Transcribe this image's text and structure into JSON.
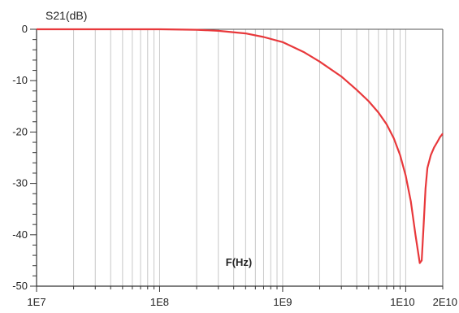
{
  "chart_data": {
    "type": "line",
    "title": "",
    "ylabel": "S21(dB)",
    "xlabel": "F(Hz)",
    "x_scale": "log",
    "xlim": [
      10000000.0,
      20000000000.0
    ],
    "ylim": [
      -50,
      0
    ],
    "grid": "x-minor-log",
    "x_tick_labels": [
      {
        "value": 10000000.0,
        "label": "1E7"
      },
      {
        "value": 100000000.0,
        "label": "1E8"
      },
      {
        "value": 1000000000.0,
        "label": "1E9"
      },
      {
        "value": 10000000000.0,
        "label": "1E10"
      },
      {
        "value": 20000000000.0,
        "label": "2E10"
      }
    ],
    "y_tick_labels": [
      {
        "value": 0,
        "label": "0"
      },
      {
        "value": -10,
        "label": "-10"
      },
      {
        "value": -20,
        "label": "-20"
      },
      {
        "value": -30,
        "label": "-30"
      },
      {
        "value": -40,
        "label": "-40"
      },
      {
        "value": -50,
        "label": "-50"
      }
    ],
    "series": [
      {
        "color": "#e8383b",
        "x": [
          10000000.0,
          50000000.0,
          100000000.0,
          200000000.0,
          300000000.0,
          500000000.0,
          700000000.0,
          1000000000.0,
          1500000000.0,
          2000000000.0,
          3000000000.0,
          4000000000.0,
          5000000000.0,
          6000000000.0,
          7000000000.0,
          8000000000.0,
          9000000000.0,
          10000000000.0,
          11000000000.0,
          12000000000.0,
          13000000000.0,
          13500000000.0,
          14000000000.0,
          14500000000.0,
          15000000000.0,
          16000000000.0,
          17000000000.0,
          18000000000.0,
          19000000000.0,
          20000000000.0
        ],
        "y": [
          0,
          0,
          0,
          -0.1,
          -0.3,
          -0.8,
          -1.5,
          -2.5,
          -4.5,
          -6.3,
          -9.2,
          -11.8,
          -14.0,
          -16.2,
          -18.5,
          -21.2,
          -24.5,
          -28.5,
          -33.5,
          -40.0,
          -45.5,
          -45.0,
          -38.0,
          -31.0,
          -27.0,
          -24.5,
          -23.0,
          -22.0,
          -21.0,
          -20.3
        ]
      }
    ]
  }
}
